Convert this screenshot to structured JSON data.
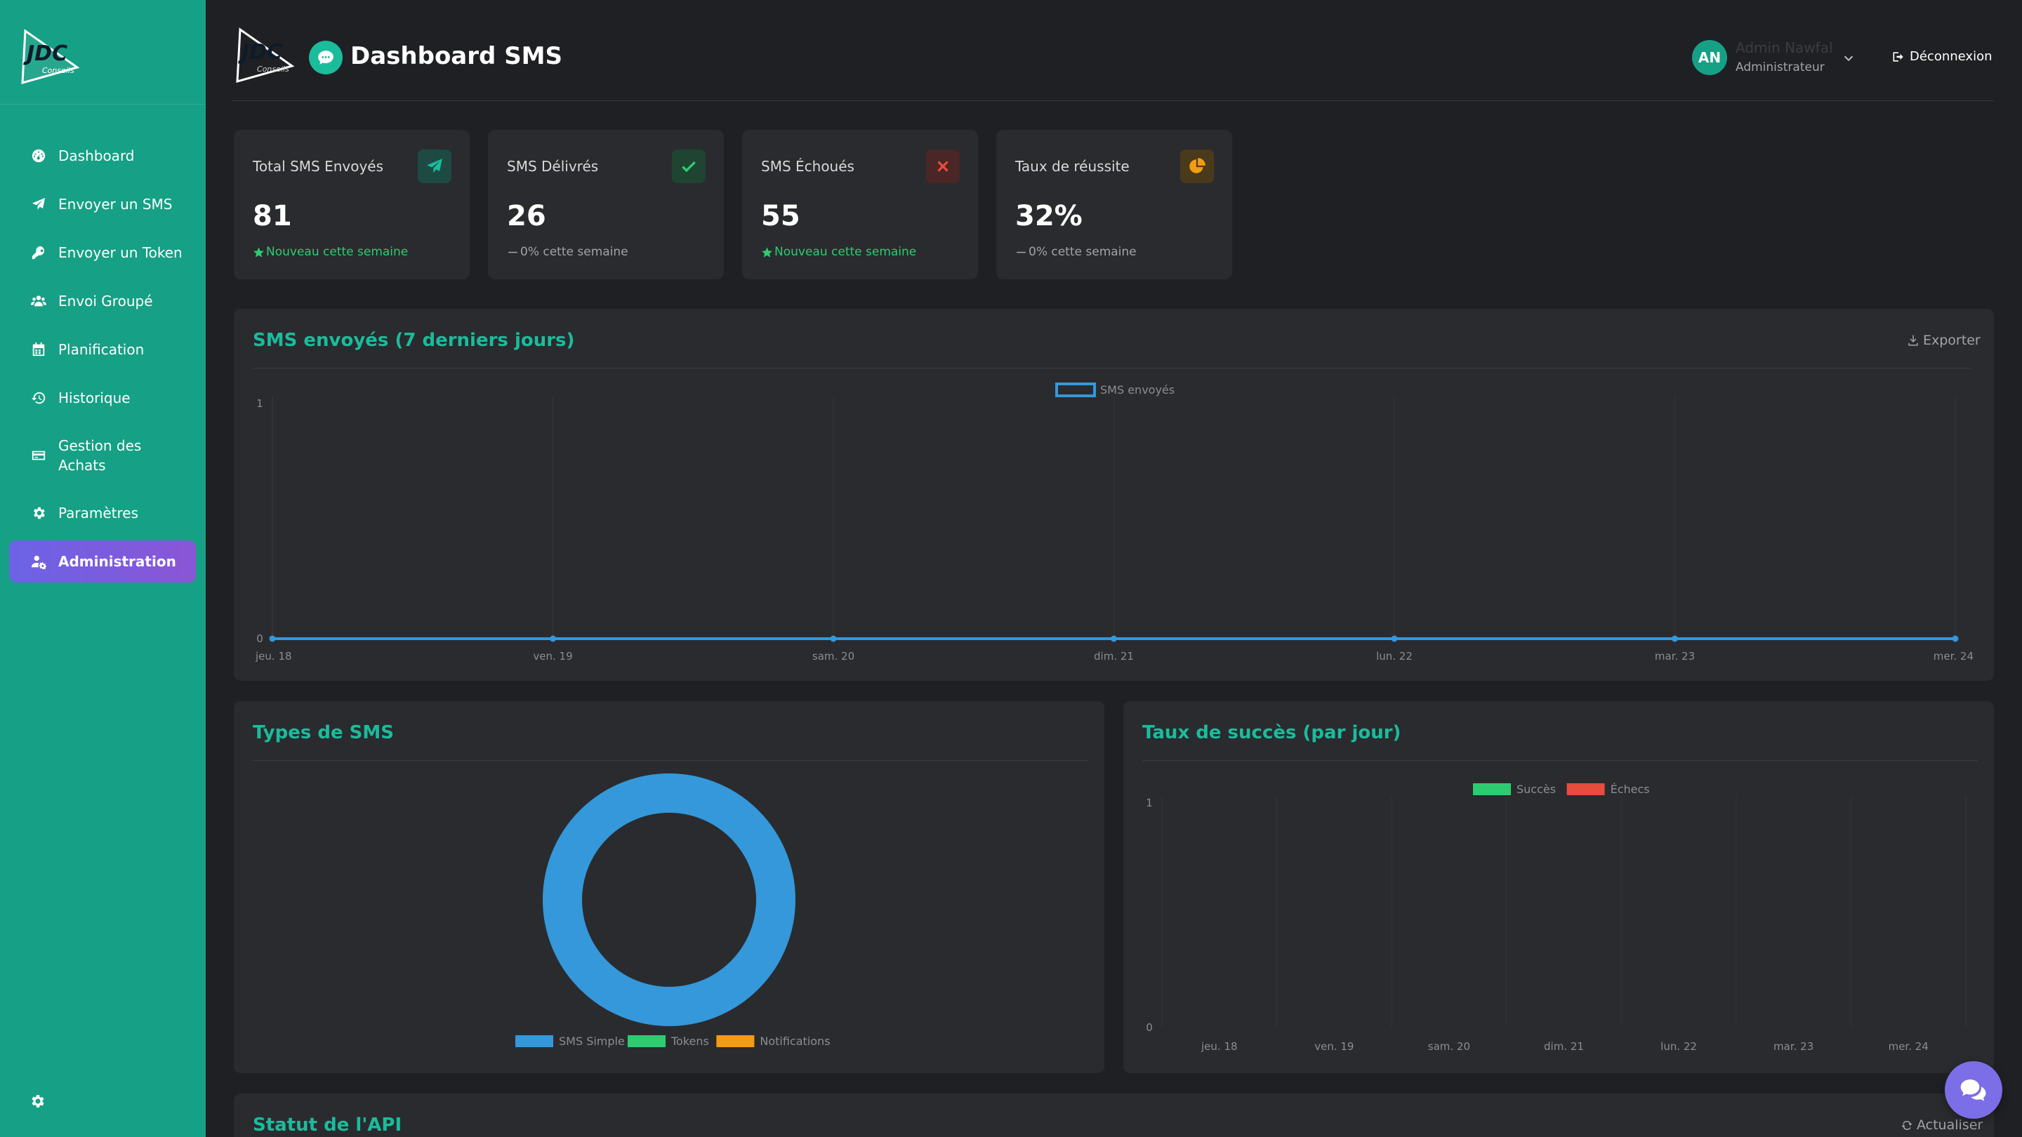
{
  "brand": {
    "logo_text": "JDC",
    "logo_sub": "Conseils"
  },
  "header": {
    "title": "Dashboard SMS",
    "logout_label": "Déconnexion"
  },
  "user": {
    "initials": "AN",
    "name": "Admin Nawfal",
    "role": "Administrateur"
  },
  "sidebar": {
    "items": [
      {
        "label": "Dashboard",
        "icon": "gauge-icon",
        "active": false
      },
      {
        "label": "Envoyer un SMS",
        "icon": "paper-plane-icon",
        "active": false
      },
      {
        "label": "Envoyer un Token",
        "icon": "key-icon",
        "active": false
      },
      {
        "label": "Envoi Groupé",
        "icon": "users-icon",
        "active": false
      },
      {
        "label": "Planification",
        "icon": "calendar-icon",
        "active": false
      },
      {
        "label": "Historique",
        "icon": "history-icon",
        "active": false
      },
      {
        "label": "Gestion des Achats",
        "icon": "credit-card-icon",
        "active": false
      },
      {
        "label": "Paramètres",
        "icon": "gear-icon",
        "active": false
      },
      {
        "label": "Administration",
        "icon": "user-cog-icon",
        "active": true
      }
    ]
  },
  "stats": [
    {
      "label": "Total SMS Envoyés",
      "value": "81",
      "trend": "Nouveau cette semaine",
      "trend_kind": "up",
      "icon": "paper-plane-icon",
      "accent": "#1abc9c"
    },
    {
      "label": "SMS Délivrés",
      "value": "26",
      "trend": "0% cette semaine",
      "trend_kind": "flat",
      "icon": "check-icon",
      "accent": "#2ecc71"
    },
    {
      "label": "SMS Échoués",
      "value": "55",
      "trend": "Nouveau cette semaine",
      "trend_kind": "up",
      "icon": "close-icon",
      "accent": "#e74c3c"
    },
    {
      "label": "Taux de réussite",
      "value": "32%",
      "trend": "0% cette semaine",
      "trend_kind": "flat",
      "icon": "pie-chart-icon",
      "accent": "#f39c12"
    }
  ],
  "panels": {
    "sent": {
      "title": "SMS envoyés (7 derniers jours)",
      "action": "Exporter"
    },
    "types": {
      "title": "Types de SMS"
    },
    "success": {
      "title": "Taux de succès (par jour)"
    },
    "api": {
      "title": "Statut de l'API",
      "action": "Actualiser"
    }
  },
  "colors": {
    "sidebar": "#16a085",
    "accent": "#1abc9c",
    "active": "#7b6ee6",
    "line": "#3498db",
    "success": "#2ecc71",
    "fail": "#e74c3c",
    "notif": "#f39c12"
  },
  "chart_data": [
    {
      "type": "line",
      "x": [
        "jeu. 18",
        "ven. 19",
        "sam. 20",
        "dim. 21",
        "lun. 22",
        "mar. 23",
        "mer. 24"
      ],
      "series": [
        {
          "name": "SMS envoyés",
          "values": [
            0,
            0,
            0,
            0,
            0,
            0,
            0
          ],
          "color": "#3498db"
        }
      ],
      "ylim": [
        0,
        1
      ],
      "yticks": [
        "0",
        "1"
      ],
      "legend": "top-center",
      "grid": true
    },
    {
      "type": "pie",
      "categories": [
        "SMS Simple",
        "Tokens",
        "Notifications"
      ],
      "values": [
        100,
        0,
        0
      ],
      "colors": [
        "#3498db",
        "#2ecc71",
        "#f39c12"
      ],
      "legend": "bottom"
    },
    {
      "type": "bar",
      "categories": [
        "jeu. 18",
        "ven. 19",
        "sam. 20",
        "dim. 21",
        "lun. 22",
        "mar. 23",
        "mer. 24"
      ],
      "series": [
        {
          "name": "Succès",
          "values": [
            0,
            0,
            0,
            0,
            0,
            0,
            0
          ],
          "color": "#2ecc71"
        },
        {
          "name": "Échecs",
          "values": [
            0,
            0,
            0,
            0,
            0,
            0,
            0
          ],
          "color": "#e74c3c"
        }
      ],
      "ylim": [
        0,
        1
      ],
      "yticks": [
        "0",
        "1"
      ],
      "legend": "top-center",
      "grid": true
    }
  ]
}
